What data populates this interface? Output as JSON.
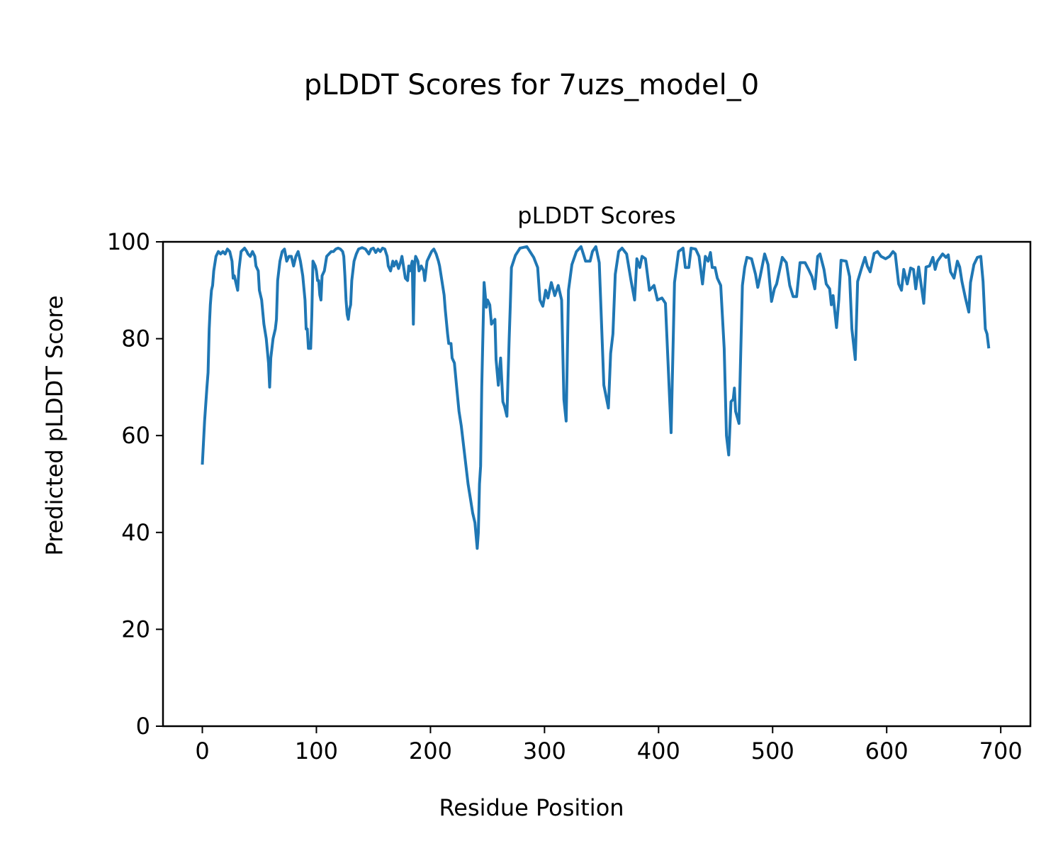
{
  "chart_data": {
    "type": "line",
    "suptitle": "pLDDT Scores for 7uzs_model_0",
    "title": "pLDDT Scores",
    "xlabel": "Residue Position",
    "ylabel": "Predicted pLDDT Score",
    "xlim": [
      -34.5,
      726
    ],
    "ylim": [
      0,
      100
    ],
    "xticks": [
      0,
      100,
      200,
      300,
      400,
      500,
      600,
      700
    ],
    "yticks": [
      0,
      20,
      40,
      60,
      80,
      100
    ],
    "grid": false,
    "color": "#1f77b4",
    "series": [
      {
        "name": "pLDDT",
        "points": [
          [
            0,
            54
          ],
          [
            2,
            63
          ],
          [
            4,
            70
          ],
          [
            5,
            73
          ],
          [
            6,
            82
          ],
          [
            7,
            87
          ],
          [
            8,
            90
          ],
          [
            9,
            91
          ],
          [
            10,
            94
          ],
          [
            12,
            97
          ],
          [
            14,
            98
          ],
          [
            16,
            97.5
          ],
          [
            18,
            98
          ],
          [
            20,
            97.5
          ],
          [
            22,
            98.5
          ],
          [
            24,
            98
          ],
          [
            26,
            96
          ],
          [
            27,
            92.5
          ],
          [
            28,
            93
          ],
          [
            30,
            91
          ],
          [
            31,
            90
          ],
          [
            32,
            94
          ],
          [
            34,
            98
          ],
          [
            37,
            98.7
          ],
          [
            39,
            98
          ],
          [
            40,
            97.5
          ],
          [
            42,
            97
          ],
          [
            44,
            98
          ],
          [
            46,
            97
          ],
          [
            47,
            95
          ],
          [
            49,
            94
          ],
          [
            50,
            90
          ],
          [
            52,
            88
          ],
          [
            54,
            83
          ],
          [
            56,
            80
          ],
          [
            58,
            75
          ],
          [
            59,
            70
          ],
          [
            60,
            76
          ],
          [
            62,
            80
          ],
          [
            64,
            82
          ],
          [
            65,
            84
          ],
          [
            66,
            92
          ],
          [
            68,
            96
          ],
          [
            70,
            98
          ],
          [
            72,
            98.5
          ],
          [
            74,
            96
          ],
          [
            76,
            97
          ],
          [
            78,
            97
          ],
          [
            80,
            95
          ],
          [
            82,
            97
          ],
          [
            84,
            98
          ],
          [
            86,
            96
          ],
          [
            88,
            93
          ],
          [
            90,
            88
          ],
          [
            91,
            82
          ],
          [
            92,
            82
          ],
          [
            93,
            78
          ],
          [
            95,
            78
          ],
          [
            96,
            85
          ],
          [
            97,
            96
          ],
          [
            99,
            95
          ],
          [
            100,
            94
          ],
          [
            101,
            92
          ],
          [
            102,
            92
          ],
          [
            103,
            89
          ],
          [
            104,
            88
          ],
          [
            105,
            93
          ],
          [
            107,
            94
          ],
          [
            109,
            97
          ],
          [
            111,
            97.5
          ],
          [
            113,
            98
          ],
          [
            115,
            98
          ],
          [
            117,
            98.5
          ],
          [
            119,
            98.7
          ],
          [
            121,
            98.5
          ],
          [
            123,
            98
          ],
          [
            124,
            97
          ],
          [
            125,
            93
          ],
          [
            126,
            88
          ],
          [
            127,
            85
          ],
          [
            128,
            84
          ],
          [
            129,
            86
          ],
          [
            130,
            87
          ],
          [
            131,
            92
          ],
          [
            133,
            96
          ],
          [
            135,
            97.5
          ],
          [
            137,
            98.5
          ],
          [
            140,
            98.8
          ],
          [
            143,
            98.5
          ],
          [
            146,
            97.5
          ],
          [
            148,
            98.5
          ],
          [
            150,
            98.7
          ],
          [
            152,
            97.8
          ],
          [
            154,
            98.5
          ],
          [
            156,
            98
          ],
          [
            158,
            98.7
          ],
          [
            160,
            98.5
          ],
          [
            162,
            97
          ],
          [
            163,
            95
          ],
          [
            165,
            94
          ],
          [
            167,
            96
          ],
          [
            168,
            95
          ],
          [
            170,
            96
          ],
          [
            172,
            94.5
          ],
          [
            174,
            96
          ],
          [
            175,
            97
          ],
          [
            177,
            94
          ],
          [
            178,
            92.5
          ],
          [
            180,
            92
          ],
          [
            181,
            95
          ],
          [
            182,
            94
          ],
          [
            184,
            96
          ],
          [
            185,
            83
          ],
          [
            186,
            95
          ],
          [
            187,
            97
          ],
          [
            189,
            96
          ],
          [
            190,
            94
          ],
          [
            192,
            95
          ],
          [
            194,
            94
          ],
          [
            195,
            92
          ],
          [
            196,
            94
          ],
          [
            197,
            96
          ],
          [
            199,
            97
          ],
          [
            201,
            98
          ],
          [
            203,
            98.5
          ],
          [
            205,
            97.5
          ],
          [
            207,
            96
          ],
          [
            208,
            95
          ],
          [
            210,
            92
          ],
          [
            212,
            89
          ],
          [
            213,
            86
          ],
          [
            215,
            81
          ],
          [
            216,
            79
          ],
          [
            218,
            79
          ],
          [
            219,
            76
          ],
          [
            221,
            75
          ],
          [
            223,
            70
          ],
          [
            225,
            65
          ],
          [
            227,
            62
          ],
          [
            229,
            58
          ],
          [
            231,
            54
          ],
          [
            233,
            50
          ],
          [
            235,
            47
          ],
          [
            237,
            44
          ],
          [
            239,
            42
          ],
          [
            241,
            36.7
          ],
          [
            242,
            40
          ],
          [
            243,
            50
          ],
          [
            244,
            53.7
          ],
          [
            245,
            70
          ],
          [
            247,
            91.6
          ],
          [
            249,
            86.5
          ],
          [
            250,
            88
          ],
          [
            252,
            87
          ],
          [
            253.5,
            83
          ],
          [
            256.5,
            84
          ],
          [
            257.5,
            75.7
          ],
          [
            259.5,
            70.4
          ],
          [
            261.5,
            76
          ],
          [
            263.5,
            67
          ],
          [
            265,
            66
          ],
          [
            267,
            64
          ],
          [
            269,
            80
          ],
          [
            270,
            87
          ],
          [
            271,
            94.7
          ],
          [
            274.5,
            97.2
          ],
          [
            278.5,
            98.7
          ],
          [
            284.5,
            99
          ],
          [
            290.5,
            96.8
          ],
          [
            294,
            94.7
          ],
          [
            296,
            88
          ],
          [
            298.5,
            86.7
          ],
          [
            301,
            90
          ],
          [
            303,
            88.4
          ],
          [
            306,
            91.6
          ],
          [
            309,
            88.9
          ],
          [
            312,
            91
          ],
          [
            315,
            88
          ],
          [
            317,
            67.5
          ],
          [
            319,
            63
          ],
          [
            321,
            90
          ],
          [
            324,
            95.3
          ],
          [
            328,
            98
          ],
          [
            332,
            99
          ],
          [
            336,
            96
          ],
          [
            340,
            96
          ],
          [
            342,
            98
          ],
          [
            345,
            99
          ],
          [
            348,
            95.7
          ],
          [
            352,
            70.4
          ],
          [
            356,
            65.7
          ],
          [
            358,
            77
          ],
          [
            360,
            81
          ],
          [
            362,
            93.3
          ],
          [
            365,
            98
          ],
          [
            368,
            98.7
          ],
          [
            372,
            97.5
          ],
          [
            376,
            91.8
          ],
          [
            379,
            88
          ],
          [
            381,
            96.5
          ],
          [
            383.5,
            94.7
          ],
          [
            385.5,
            97
          ],
          [
            388.5,
            96.5
          ],
          [
            392,
            90
          ],
          [
            396,
            91
          ],
          [
            399,
            88
          ],
          [
            403,
            88.4
          ],
          [
            406,
            87.3
          ],
          [
            411,
            60.6
          ],
          [
            414,
            91.6
          ],
          [
            417.5,
            98
          ],
          [
            421.5,
            98.7
          ],
          [
            423.5,
            94.7
          ],
          [
            426.5,
            94.7
          ],
          [
            428.5,
            98.7
          ],
          [
            432.5,
            98.5
          ],
          [
            435.5,
            97
          ],
          [
            438.5,
            91.3
          ],
          [
            441,
            97
          ],
          [
            443.5,
            96
          ],
          [
            445.5,
            97.8
          ],
          [
            447,
            94.7
          ],
          [
            449.5,
            94.7
          ],
          [
            451.5,
            92.5
          ],
          [
            454.5,
            91
          ],
          [
            457.5,
            78
          ],
          [
            459.5,
            60
          ],
          [
            461.5,
            56
          ],
          [
            463.5,
            67
          ],
          [
            465.5,
            67.5
          ],
          [
            466.5,
            69.8
          ],
          [
            467.5,
            65
          ],
          [
            470.5,
            62.5
          ],
          [
            473.5,
            91
          ],
          [
            475.5,
            94.7
          ],
          [
            477.5,
            96.8
          ],
          [
            481.5,
            96.5
          ],
          [
            485,
            93.3
          ],
          [
            487,
            90.6
          ],
          [
            489,
            92.8
          ],
          [
            493,
            97.5
          ],
          [
            496,
            95.3
          ],
          [
            499,
            87.7
          ],
          [
            501.5,
            90.3
          ],
          [
            503.5,
            91.3
          ],
          [
            508.5,
            96.8
          ],
          [
            512,
            95.7
          ],
          [
            515,
            91
          ],
          [
            518,
            88.7
          ],
          [
            521,
            88.7
          ],
          [
            524,
            95.7
          ],
          [
            528.5,
            95.7
          ],
          [
            531.5,
            94.3
          ],
          [
            534.5,
            92.8
          ],
          [
            537,
            90.3
          ],
          [
            539.5,
            97
          ],
          [
            541.5,
            97.5
          ],
          [
            545,
            94.3
          ],
          [
            547,
            91.3
          ],
          [
            550,
            90.3
          ],
          [
            551.5,
            87
          ],
          [
            553,
            88.9
          ],
          [
            556,
            82.3
          ],
          [
            558,
            88
          ],
          [
            560,
            96.2
          ],
          [
            564.5,
            96
          ],
          [
            567.5,
            92.8
          ],
          [
            569.5,
            82
          ],
          [
            572.5,
            75.7
          ],
          [
            574.5,
            91.8
          ],
          [
            578,
            94.6
          ],
          [
            581,
            96.8
          ],
          [
            583,
            95
          ],
          [
            585.5,
            93.8
          ],
          [
            589,
            97.6
          ],
          [
            592,
            98
          ],
          [
            595,
            97
          ],
          [
            599,
            96.5
          ],
          [
            602.5,
            97
          ],
          [
            605.5,
            98
          ],
          [
            607.5,
            97.5
          ],
          [
            610.5,
            91.3
          ],
          [
            613,
            90
          ],
          [
            615,
            94.3
          ],
          [
            618,
            91.3
          ],
          [
            621,
            94.6
          ],
          [
            623.5,
            94.3
          ],
          [
            625.5,
            90.3
          ],
          [
            628,
            94.8
          ],
          [
            632.5,
            87.3
          ],
          [
            634.5,
            94.8
          ],
          [
            637.5,
            95
          ],
          [
            640.5,
            96.8
          ],
          [
            642.5,
            94.3
          ],
          [
            644.5,
            96
          ],
          [
            649,
            97.5
          ],
          [
            652,
            96.8
          ],
          [
            654,
            97.3
          ],
          [
            656,
            93.8
          ],
          [
            659,
            92.5
          ],
          [
            662,
            96
          ],
          [
            664,
            94.8
          ],
          [
            666,
            91.8
          ],
          [
            669,
            88.4
          ],
          [
            672,
            85.5
          ],
          [
            673.5,
            91.6
          ],
          [
            676.5,
            95.3
          ],
          [
            679.5,
            96.8
          ],
          [
            682.5,
            97
          ],
          [
            684.5,
            91.8
          ],
          [
            686.5,
            82
          ],
          [
            688,
            81
          ],
          [
            689.5,
            78
          ]
        ]
      }
    ]
  }
}
